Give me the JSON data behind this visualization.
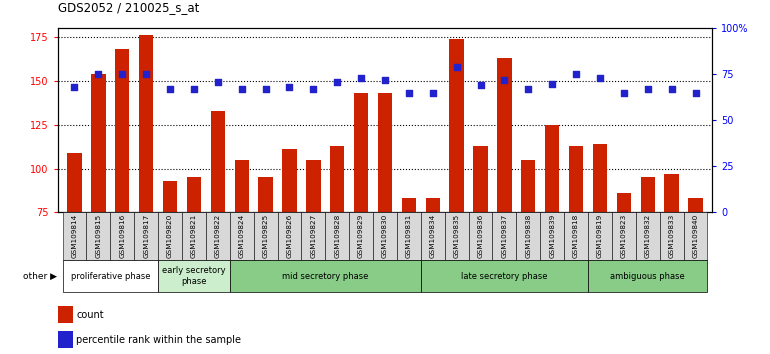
{
  "title": "GDS2052 / 210025_s_at",
  "samples": [
    "GSM109814",
    "GSM109815",
    "GSM109816",
    "GSM109817",
    "GSM109820",
    "GSM109821",
    "GSM109822",
    "GSM109824",
    "GSM109825",
    "GSM109826",
    "GSM109827",
    "GSM109828",
    "GSM109829",
    "GSM109830",
    "GSM109831",
    "GSM109834",
    "GSM109835",
    "GSM109836",
    "GSM109837",
    "GSM109838",
    "GSM109839",
    "GSM109818",
    "GSM109819",
    "GSM109823",
    "GSM109832",
    "GSM109833",
    "GSM109840"
  ],
  "counts": [
    109,
    154,
    168,
    176,
    93,
    95,
    133,
    105,
    95,
    111,
    105,
    113,
    143,
    143,
    83,
    83,
    174,
    113,
    163,
    105,
    125,
    113,
    114,
    86,
    95,
    97,
    83
  ],
  "percentile": [
    68,
    75,
    75,
    75,
    67,
    67,
    71,
    67,
    67,
    68,
    67,
    71,
    73,
    72,
    65,
    65,
    79,
    69,
    72,
    67,
    70,
    75,
    73,
    65,
    67,
    67,
    65
  ],
  "ylim_left": [
    75,
    180
  ],
  "ylim_right": [
    0,
    100
  ],
  "yticks_left": [
    75,
    100,
    125,
    150,
    175
  ],
  "yticks_right": [
    0,
    25,
    50,
    75,
    100
  ],
  "ytick_labels_right": [
    "0",
    "25",
    "50",
    "75",
    "100%"
  ],
  "bar_color": "#cc2200",
  "dot_color": "#2222cc",
  "phases": [
    {
      "label": "proliferative phase",
      "start": 0,
      "end": 4,
      "color": "#ffffff",
      "text_color": "#000000"
    },
    {
      "label": "early secretory\nphase",
      "start": 4,
      "end": 7,
      "color": "#cceecc",
      "text_color": "#000000"
    },
    {
      "label": "mid secretory phase",
      "start": 7,
      "end": 15,
      "color": "#88cc88",
      "text_color": "#000000"
    },
    {
      "label": "late secretory phase",
      "start": 15,
      "end": 22,
      "color": "#88cc88",
      "text_color": "#000000"
    },
    {
      "label": "ambiguous phase",
      "start": 22,
      "end": 27,
      "color": "#88cc88",
      "text_color": "#000000"
    }
  ],
  "legend_count_label": "count",
  "legend_pct_label": "percentile rank within the sample",
  "other_label": "other",
  "tick_bg_color": "#d8d8d8"
}
